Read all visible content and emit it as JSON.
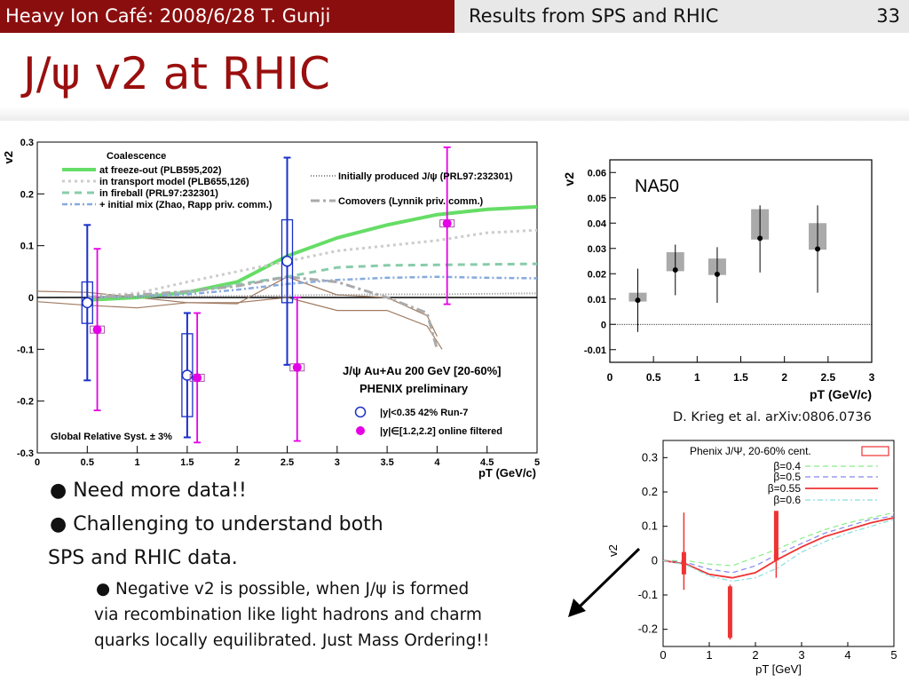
{
  "header": {
    "left": "Heavy Ion Café: 2008/6/28 T. Gunji",
    "right": "Results from SPS and RHIC",
    "page": "33"
  },
  "title": "J/ψ v2 at RHIC",
  "bullets": [
    "Need more data!!",
    "Challenging to understand both",
    "SPS and RHIC data."
  ],
  "sub_bullet": [
    "Negative v2 is possible, when J/ψ is formed",
    "via recombination like light hadrons and charm",
    "quarks locally equilibrated. Just Mass Ordering!!"
  ],
  "credit": "D. Krieg et al. arXiv:0806.0736",
  "colors": {
    "header_left": "#8b0e0e",
    "title": "#9a0f0f",
    "phenix_blue": "#1a2fc8",
    "phenix_magenta": "#e600e6",
    "coal_green": "#66dd66"
  },
  "chart_data": [
    {
      "type": "scatter",
      "ylabel": "v2",
      "xlabel": "pT (GeV/c)",
      "xlim": [
        0,
        5
      ],
      "ylim": [
        -0.3,
        0.3
      ],
      "x_ticks": [
        "0",
        "0.5",
        "1",
        "1.5",
        "2",
        "2.5",
        "3",
        "3.5",
        "4",
        "4.5",
        "5"
      ],
      "y_ticks": [
        "0.3",
        "0.2",
        "0.1",
        "0",
        "-0.1",
        "-0.2",
        "-0.3"
      ],
      "legend_title": "Coalescence",
      "legend": [
        "at freeze-out (PLB595,202)",
        "in transport model (PLB655,126)",
        "in fireball (PRL97:232301)",
        "+ initial mix (Zhao, Rapp priv. comm.)",
        "Initially produced J/ψ (PRL97:232301)",
        "Comovers (Lynnik priv. comm.)"
      ],
      "annotation1": "J/ψ  Au+Au 200 GeV [20-60%]",
      "annotation2": "PHENIX preliminary",
      "series_labels": [
        "|y|<0.35 42% Run-7",
        "|y|∈[1.2,2.2] online filtered"
      ],
      "syst": "Global Relative Syst. ± 3%",
      "series": [
        {
          "name": "|y|<0.35 42% Run-7",
          "points": [
            {
              "x": 0.5,
              "y": -0.01,
              "lo": -0.16,
              "hi": 0.14,
              "slo": -0.05,
              "shi": 0.03
            },
            {
              "x": 1.5,
              "y": -0.15,
              "lo": -0.27,
              "hi": -0.03,
              "slo": -0.23,
              "shi": -0.07
            },
            {
              "x": 2.5,
              "y": 0.07,
              "lo": -0.13,
              "hi": 0.27,
              "slo": -0.01,
              "shi": 0.15
            }
          ]
        },
        {
          "name": "|y|∈[1.2,2.2] online filtered",
          "points": [
            {
              "x": 0.6,
              "y": -0.062,
              "lo": -0.218,
              "hi": 0.094
            },
            {
              "x": 1.6,
              "y": -0.155,
              "lo": -0.28,
              "hi": -0.03
            },
            {
              "x": 2.6,
              "y": -0.135,
              "lo": -0.277,
              "hi": 0.0
            },
            {
              "x": 4.1,
              "y": 0.143,
              "lo": -0.013,
              "hi": 0.29
            }
          ]
        }
      ],
      "curves": [
        {
          "name": "at freeze-out",
          "points": [
            [
              0.5,
              -0.005
            ],
            [
              1,
              0.0
            ],
            [
              1.5,
              0.01
            ],
            [
              2,
              0.03
            ],
            [
              2.5,
              0.08
            ],
            [
              3,
              0.115
            ],
            [
              3.5,
              0.14
            ],
            [
              4,
              0.16
            ],
            [
              4.5,
              0.17
            ],
            [
              5,
              0.175
            ]
          ]
        },
        {
          "name": "in transport model",
          "points": [
            [
              0.5,
              0.002
            ],
            [
              1,
              0.008
            ],
            [
              1.5,
              0.03
            ],
            [
              2,
              0.05
            ],
            [
              2.5,
              0.07
            ],
            [
              3,
              0.09
            ],
            [
              3.5,
              0.1
            ],
            [
              4,
              0.11
            ],
            [
              4.5,
              0.125
            ],
            [
              5,
              0.13
            ]
          ]
        },
        {
          "name": "in fireball",
          "points": [
            [
              0.5,
              0.0
            ],
            [
              1,
              0.002
            ],
            [
              1.5,
              0.01
            ],
            [
              2,
              0.025
            ],
            [
              2.5,
              0.04
            ],
            [
              3,
              0.058
            ],
            [
              3.5,
              0.062
            ],
            [
              4,
              0.063
            ],
            [
              4.5,
              0.064
            ],
            [
              5,
              0.065
            ]
          ]
        },
        {
          "name": "+ initial mix",
          "points": [
            [
              0.5,
              0.0
            ],
            [
              1,
              0.002
            ],
            [
              1.5,
              0.006
            ],
            [
              2,
              0.015
            ],
            [
              2.5,
              0.026
            ],
            [
              3,
              0.034
            ],
            [
              3.5,
              0.038
            ],
            [
              4,
              0.04
            ],
            [
              4.5,
              0.038
            ],
            [
              5,
              0.037
            ]
          ]
        },
        {
          "name": "Initially produced",
          "points": [
            [
              0.5,
              0.0
            ],
            [
              1,
              0.001
            ],
            [
              1.5,
              0.002
            ],
            [
              2,
              0.003
            ],
            [
              2.5,
              0.004
            ],
            [
              3,
              0.005
            ],
            [
              3.5,
              0.006
            ],
            [
              4,
              0.006
            ],
            [
              4.5,
              0.007
            ],
            [
              5,
              0.008
            ]
          ]
        },
        {
          "name": "Comovers",
          "points": [
            [
              0.5,
              0.0
            ],
            [
              1,
              0.005
            ],
            [
              1.5,
              0.012
            ],
            [
              2,
              0.022
            ],
            [
              2.5,
              0.04
            ],
            [
              3,
              0.03
            ],
            [
              3.5,
              0.0
            ],
            [
              3.9,
              -0.03
            ],
            [
              4.0,
              -0.1
            ]
          ]
        },
        {
          "name": "band upper",
          "points": [
            [
              0,
              0.012
            ],
            [
              0.5,
              0.01
            ],
            [
              1,
              0.0
            ],
            [
              1.5,
              -0.01
            ],
            [
              2,
              -0.012
            ],
            [
              2.5,
              0.04
            ],
            [
              3,
              0.005
            ],
            [
              3.5,
              0.0
            ],
            [
              3.9,
              -0.035
            ],
            [
              4.0,
              -0.075
            ]
          ]
        },
        {
          "name": "band lower",
          "points": [
            [
              0,
              -0.008
            ],
            [
              0.5,
              -0.015
            ],
            [
              1,
              -0.02
            ],
            [
              1.5,
              -0.01
            ],
            [
              2,
              -0.01
            ],
            [
              2.5,
              0.0
            ],
            [
              3,
              -0.025
            ],
            [
              3.5,
              -0.025
            ],
            [
              3.9,
              -0.055
            ],
            [
              4.05,
              -0.1
            ]
          ]
        }
      ]
    },
    {
      "type": "scatter",
      "title": "NA50",
      "ylabel": "v2",
      "xlabel": "pT (GeV/c)",
      "xlim": [
        0,
        3
      ],
      "ylim": [
        -0.015,
        0.065
      ],
      "x_ticks": [
        "0",
        "0.5",
        "1",
        "1.5",
        "2",
        "2.5",
        "3"
      ],
      "y_ticks": [
        "0.06",
        "0.05",
        "0.04",
        "0.03",
        "0.02",
        "0.01",
        "0",
        "-0.01"
      ],
      "points": [
        {
          "x": 0.32,
          "y": 0.0095,
          "lo": -0.003,
          "hi": 0.022,
          "slo": 0.009,
          "shi": 0.0125
        },
        {
          "x": 0.75,
          "y": 0.0215,
          "lo": 0.0115,
          "hi": 0.0315,
          "slo": 0.021,
          "shi": 0.0285
        },
        {
          "x": 1.23,
          "y": 0.0198,
          "lo": 0.0085,
          "hi": 0.0305,
          "slo": 0.0195,
          "shi": 0.026
        },
        {
          "x": 1.72,
          "y": 0.034,
          "lo": 0.0205,
          "hi": 0.047,
          "slo": 0.0335,
          "shi": 0.0455
        },
        {
          "x": 2.38,
          "y": 0.0298,
          "lo": 0.0125,
          "hi": 0.047,
          "slo": 0.0295,
          "shi": 0.04
        }
      ]
    },
    {
      "type": "line",
      "ylabel": "v2",
      "xlabel": "pT [GeV]",
      "xlim": [
        0,
        5
      ],
      "ylim": [
        -0.25,
        0.35
      ],
      "x_ticks": [
        "0",
        "1",
        "2",
        "3",
        "4",
        "5"
      ],
      "y_ticks": [
        "0.3",
        "0.2",
        "0.1",
        "0",
        "-0.1",
        "-0.2"
      ],
      "legend": [
        "Phenix J/Ψ, 20-60% cent.",
        "β=0.4",
        "β=0.5",
        "β=0.55",
        "β=0.6"
      ],
      "curves": [
        {
          "name": "β=0.4",
          "points": [
            [
              0,
              0.0
            ],
            [
              0.5,
              0.0
            ],
            [
              1,
              -0.01
            ],
            [
              1.5,
              -0.015
            ],
            [
              2,
              0.01
            ],
            [
              2.5,
              0.035
            ],
            [
              3,
              0.065
            ],
            [
              3.5,
              0.09
            ],
            [
              4,
              0.11
            ],
            [
              4.5,
              0.125
            ],
            [
              5,
              0.14
            ]
          ]
        },
        {
          "name": "β=0.5",
          "points": [
            [
              0,
              0.0
            ],
            [
              0.5,
              -0.005
            ],
            [
              1,
              -0.025
            ],
            [
              1.5,
              -0.035
            ],
            [
              2,
              -0.015
            ],
            [
              2.5,
              0.02
            ],
            [
              3,
              0.05
            ],
            [
              3.5,
              0.08
            ],
            [
              4,
              0.1
            ],
            [
              4.5,
              0.12
            ],
            [
              5,
              0.13
            ]
          ]
        },
        {
          "name": "β=0.55",
          "points": [
            [
              0,
              0.0
            ],
            [
              0.5,
              -0.01
            ],
            [
              1,
              -0.04
            ],
            [
              1.5,
              -0.05
            ],
            [
              2,
              -0.035
            ],
            [
              2.5,
              0.005
            ],
            [
              3,
              0.04
            ],
            [
              3.5,
              0.07
            ],
            [
              4,
              0.09
            ],
            [
              4.5,
              0.11
            ],
            [
              5,
              0.125
            ]
          ]
        },
        {
          "name": "β=0.6",
          "points": [
            [
              0,
              0.0
            ],
            [
              0.5,
              -0.012
            ],
            [
              1,
              -0.045
            ],
            [
              1.5,
              -0.06
            ],
            [
              2,
              -0.05
            ],
            [
              2.5,
              -0.02
            ],
            [
              3,
              0.025
            ],
            [
              3.5,
              0.055
            ],
            [
              4,
              0.08
            ],
            [
              4.5,
              0.1
            ],
            [
              5,
              0.12
            ]
          ]
        }
      ],
      "points": [
        {
          "x": 0.45,
          "y": -0.01,
          "lo": -0.085,
          "hi": 0.14,
          "slo": -0.04,
          "shi": 0.025
        },
        {
          "x": 1.45,
          "y": -0.145,
          "lo": -0.23,
          "hi": -0.07,
          "slo": -0.225,
          "shi": -0.075
        },
        {
          "x": 2.45,
          "y": 0.0,
          "lo": -0.05,
          "hi": 0.14,
          "slo": 0.0,
          "shi": 0.145
        }
      ]
    }
  ]
}
